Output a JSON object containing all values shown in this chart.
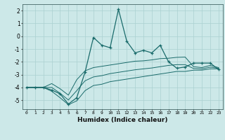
{
  "xlabel": "Humidex (Indice chaleur)",
  "bg_color": "#cce8e8",
  "line_color": "#1a6b6b",
  "grid_color": "#aad0d0",
  "x_values": [
    0,
    1,
    2,
    3,
    4,
    5,
    6,
    7,
    8,
    9,
    10,
    11,
    12,
    13,
    14,
    15,
    16,
    17,
    18,
    19,
    20,
    21,
    22,
    23
  ],
  "y_main": [
    -4.0,
    -4.0,
    -4.0,
    -4.2,
    -4.5,
    -5.3,
    -4.8,
    -2.8,
    -0.1,
    -0.7,
    -0.9,
    2.1,
    -0.4,
    -1.3,
    -1.1,
    -1.3,
    -0.7,
    -2.0,
    -2.5,
    -2.4,
    -2.1,
    -2.1,
    -2.1,
    -2.6
  ],
  "y_upper": [
    -4.0,
    -4.0,
    -4.0,
    -3.7,
    -4.1,
    -4.6,
    -3.4,
    -2.7,
    -2.45,
    -2.35,
    -2.25,
    -2.15,
    -2.05,
    -1.95,
    -1.92,
    -1.85,
    -1.75,
    -1.72,
    -1.65,
    -1.63,
    -2.38,
    -2.45,
    -2.28,
    -2.45
  ],
  "y_lower": [
    -4.0,
    -4.0,
    -4.0,
    -4.3,
    -4.8,
    -5.35,
    -5.05,
    -4.25,
    -3.85,
    -3.75,
    -3.55,
    -3.45,
    -3.35,
    -3.25,
    -3.15,
    -3.05,
    -2.95,
    -2.85,
    -2.75,
    -2.75,
    -2.65,
    -2.65,
    -2.55,
    -2.55
  ],
  "y_mid": [
    -4.0,
    -4.0,
    -4.0,
    -4.0,
    -4.45,
    -4.98,
    -4.25,
    -3.48,
    -3.18,
    -3.08,
    -2.92,
    -2.82,
    -2.72,
    -2.62,
    -2.55,
    -2.48,
    -2.38,
    -2.28,
    -2.22,
    -2.22,
    -2.52,
    -2.55,
    -2.42,
    -2.5
  ],
  "ylim": [
    -5.7,
    2.5
  ],
  "yticks": [
    -5,
    -4,
    -3,
    -2,
    -1,
    0,
    1,
    2
  ],
  "xticks": [
    0,
    1,
    2,
    3,
    4,
    5,
    6,
    7,
    8,
    9,
    10,
    11,
    12,
    13,
    14,
    15,
    16,
    17,
    18,
    19,
    20,
    21,
    22,
    23
  ]
}
